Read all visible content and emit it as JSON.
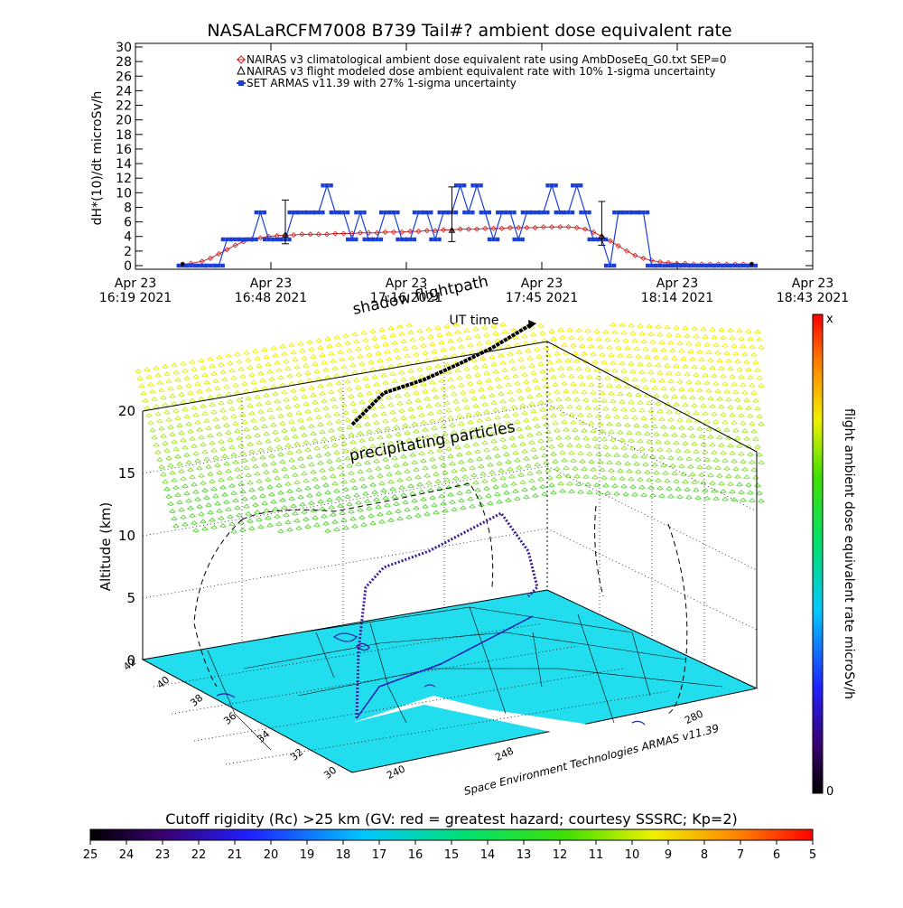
{
  "title": "NASALaRCFM7008  B739 Tail#? ambient dose equivalent rate",
  "chart_data": [
    {
      "type": "line",
      "ylabel": "dH*(10)/dt microSv/h",
      "xlabel": "UT time",
      "ylim": [
        0,
        30
      ],
      "y_ticks": [
        "0",
        "2",
        "4",
        "6",
        "8",
        "10",
        "12",
        "14",
        "16",
        "18",
        "20",
        "22",
        "24",
        "26",
        "28",
        "30"
      ],
      "x_ticks": [
        {
          "l1": "Apr 23",
          "l2": "16:19 2021"
        },
        {
          "l1": "Apr 23",
          "l2": "16:48 2021"
        },
        {
          "l1": "Apr 23",
          "l2": "17:16 2021"
        },
        {
          "l1": "Apr 23",
          "l2": "17:45 2021"
        },
        {
          "l1": "Apr 23",
          "l2": "18:14 2021"
        },
        {
          "l1": "Apr 23",
          "l2": "18:43 2021"
        }
      ],
      "legend_position": "top",
      "series": [
        {
          "name": "NAIRAS v3 climatological ambient dose equivalent rate using AmbDoseEq_G0.txt SEP=0",
          "color": "#cc2222",
          "marker": "diamond",
          "x_min": [
            17,
            20,
            24,
            27,
            30,
            33,
            36,
            39,
            42,
            45,
            48,
            51,
            54,
            57,
            60,
            63,
            66,
            69,
            72,
            75,
            78,
            81,
            84,
            87,
            90,
            93,
            96,
            99,
            102,
            105,
            108,
            111,
            114,
            117,
            120,
            123,
            126,
            129,
            132,
            135,
            138,
            141,
            144,
            147,
            150,
            153,
            156,
            159,
            162,
            165,
            168,
            171,
            174,
            177,
            180,
            183,
            186,
            189,
            192,
            195,
            198,
            201,
            204,
            207,
            210,
            213,
            216,
            219,
            222
          ],
          "values": [
            0.2,
            0.3,
            0.6,
            1.0,
            1.6,
            2.2,
            2.8,
            3.3,
            3.6,
            3.8,
            4.0,
            4.1,
            4.2,
            4.2,
            4.3,
            4.3,
            4.3,
            4.3,
            4.4,
            4.4,
            4.4,
            4.5,
            4.5,
            4.5,
            4.6,
            4.6,
            4.6,
            4.7,
            4.7,
            4.8,
            4.8,
            4.9,
            4.9,
            5.0,
            5.0,
            5.0,
            5.1,
            5.1,
            5.1,
            5.2,
            5.2,
            5.2,
            5.2,
            5.3,
            5.3,
            5.3,
            5.3,
            5.2,
            5.0,
            4.6,
            4.0,
            3.4,
            2.7,
            2.0,
            1.4,
            1.0,
            0.7,
            0.5,
            0.4,
            0.3,
            0.3,
            0.2,
            0.2,
            0.2,
            0.2,
            0.2,
            0.2,
            0.2,
            0.2
          ]
        },
        {
          "name": "NAIRAS v3 flight modeled dose ambient equivalent rate with 10% 1-sigma uncertainty",
          "color": "#000000",
          "marker": "triangle",
          "x_min": [
            54,
            114,
            168
          ],
          "values": [
            4.2,
            4.8,
            4.0
          ],
          "err": [
            0.4,
            0.5,
            0.4
          ]
        },
        {
          "name": "SET ARMAS v11.39 with 27% 1-sigma uncertainty",
          "color": "#1a3fd8",
          "marker": "square",
          "x_min": [
            17,
            20,
            24,
            27,
            30,
            33,
            36,
            39,
            42,
            45,
            48,
            51,
            54,
            57,
            60,
            63,
            66,
            69,
            72,
            75,
            78,
            81,
            84,
            87,
            90,
            93,
            96,
            99,
            102,
            105,
            108,
            111,
            114,
            117,
            120,
            123,
            126,
            129,
            132,
            135,
            138,
            141,
            144,
            147,
            150,
            153,
            156,
            159,
            162,
            165,
            168,
            171,
            174,
            177,
            180,
            183,
            186,
            189,
            192,
            195,
            198,
            201,
            204,
            207,
            210,
            213,
            216,
            219,
            222
          ],
          "values": [
            0,
            0,
            0,
            0,
            0,
            3.6,
            3.6,
            3.6,
            3.6,
            7.3,
            3.6,
            3.6,
            3.6,
            7.3,
            7.3,
            7.3,
            7.3,
            11.0,
            7.3,
            7.3,
            3.6,
            7.3,
            3.6,
            3.6,
            7.3,
            7.3,
            3.6,
            3.6,
            7.3,
            7.3,
            3.6,
            7.3,
            7.3,
            11.0,
            7.3,
            11.0,
            7.3,
            3.6,
            7.3,
            7.3,
            3.6,
            7.3,
            7.3,
            7.3,
            11.0,
            7.3,
            7.3,
            11.0,
            7.3,
            3.6,
            3.6,
            0,
            7.3,
            7.3,
            7.3,
            7.3,
            0,
            0,
            0,
            0,
            0,
            0,
            0,
            0,
            0,
            0,
            0,
            0,
            0
          ]
        }
      ]
    },
    {
      "type": "scatter",
      "xlabel": "Space Environment Technologies ARMAS v11.39",
      "ylabel": "Altitude (km)",
      "z_ticks": [
        "0",
        "5",
        "10",
        "15",
        "20"
      ],
      "lat_ticks": [
        "30",
        "32",
        "34",
        "36",
        "38",
        "40",
        "42"
      ],
      "lon_ticks": [
        "240",
        "248",
        "280"
      ],
      "annotations": [
        "shadow flightpath",
        "precipitating particles"
      ],
      "colorbar": {
        "label": "flight ambient dose equivalent rate microSv/h",
        "top_label": "x",
        "bottom_label": "0"
      }
    }
  ],
  "bottom_colorbar": {
    "label": "Cutoff rigidity (Rc) >25 km (GV: red = greatest hazard; courtesy SSSRC; Kp=2)",
    "ticks": [
      "25",
      "24",
      "23",
      "22",
      "21",
      "20",
      "19",
      "18",
      "17",
      "16",
      "15",
      "14",
      "13",
      "12",
      "11",
      "10",
      "9",
      "8",
      "7",
      "6",
      "5"
    ]
  }
}
